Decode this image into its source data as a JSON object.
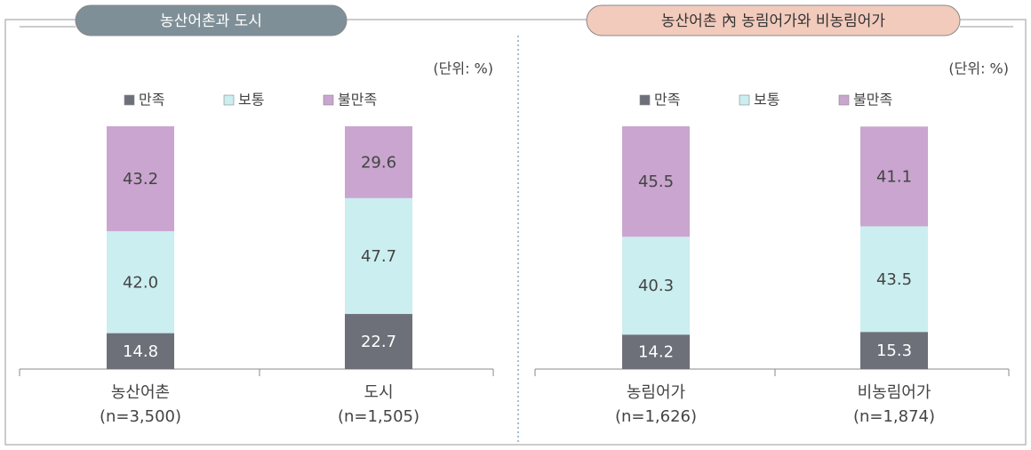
{
  "chart_data": [
    {
      "type": "stacked_bar",
      "title": "농산어촌과 도시",
      "unit": "(단위: %)",
      "categories": [
        "농산어촌",
        "도시"
      ],
      "sample_sizes": [
        "(n=3,500)",
        "(n=1,505)"
      ],
      "ylim": [
        0,
        100
      ],
      "title_color": "#7f8f97",
      "series": [
        {
          "name": "만족",
          "color": "#6d7079",
          "values": [
            14.8,
            22.7
          ],
          "value_labels": [
            "14.8",
            "22.7"
          ]
        },
        {
          "name": "보통",
          "color": "#cbeef0",
          "values": [
            42.0,
            47.7
          ],
          "value_labels": [
            "42.0",
            "47.7"
          ]
        },
        {
          "name": "불만족",
          "color": "#c9a5cf",
          "values": [
            43.2,
            29.6
          ],
          "value_labels": [
            "43.2",
            "29.6"
          ]
        }
      ]
    },
    {
      "type": "stacked_bar",
      "title": "농산어촌 內 농림어가와 비농림어가",
      "unit": "(단위: %)",
      "categories": [
        "농림어가",
        "비농림어가"
      ],
      "sample_sizes": [
        "(n=1,626)",
        "(n=1,874)"
      ],
      "ylim": [
        0,
        100
      ],
      "title_color": "#f2cbbd",
      "series": [
        {
          "name": "만족",
          "color": "#6d7079",
          "values": [
            14.2,
            15.3
          ],
          "value_labels": [
            "14.2",
            "15.3"
          ]
        },
        {
          "name": "보통",
          "color": "#cbeef0",
          "values": [
            40.3,
            43.5
          ],
          "value_labels": [
            "40.3",
            "43.5"
          ]
        },
        {
          "name": "불만족",
          "color": "#c9a5cf",
          "values": [
            45.5,
            41.1
          ],
          "value_labels": [
            "45.5",
            "41.1"
          ]
        }
      ]
    }
  ]
}
